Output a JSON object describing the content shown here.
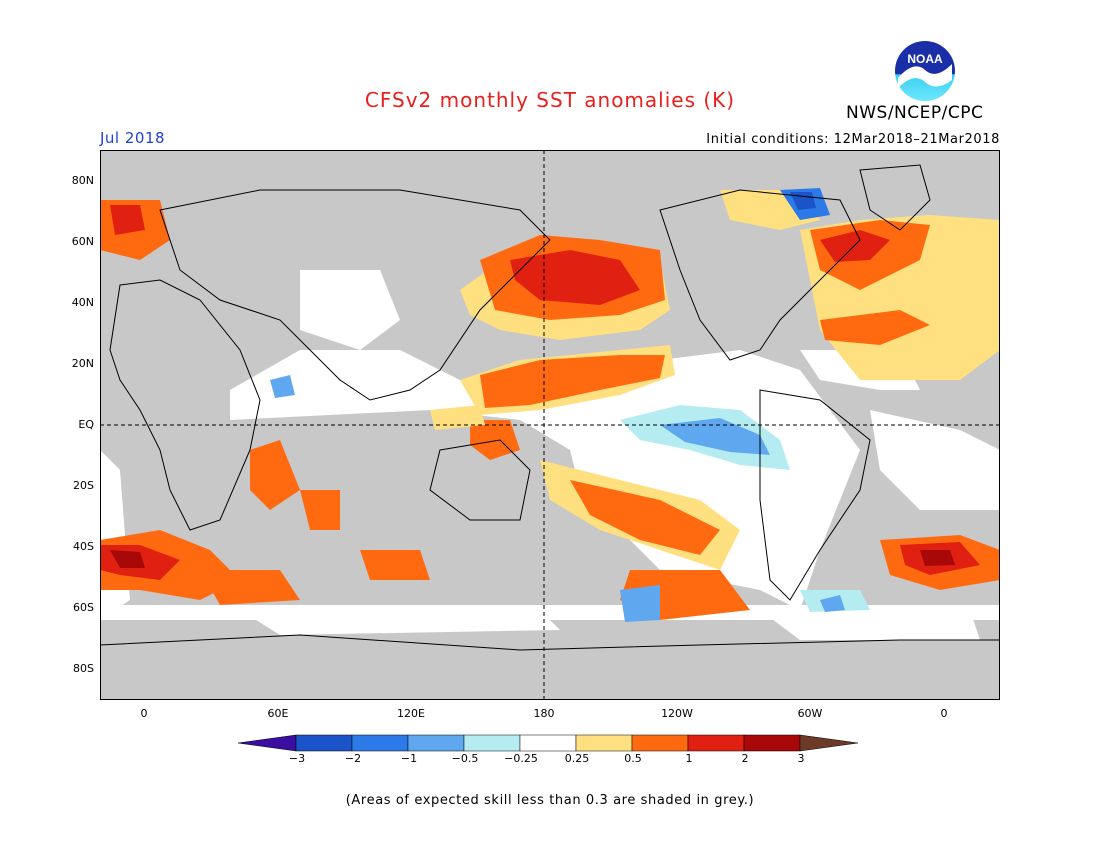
{
  "title": "CFSv2 monthly SST anomalies (K)",
  "org": "NWS/NCEP/CPC",
  "logo_text": "NOAA",
  "valid_month": "Jul 2018",
  "initial_conditions": "Initial conditions: 12Mar2018–21Mar2018",
  "lat_labels": [
    "80N",
    "60N",
    "40N",
    "20N",
    "EQ",
    "20S",
    "40S",
    "60S",
    "80S"
  ],
  "lon_labels": [
    "0",
    "60E",
    "120E",
    "180",
    "120W",
    "60W",
    "0"
  ],
  "colorbar": {
    "labels": [
      "−3",
      "−2",
      "−1",
      "−0.5",
      "−0.25",
      "0.25",
      "0.5",
      "1",
      "2",
      "3"
    ],
    "colors": [
      "#3a0ea0",
      "#1b54c8",
      "#2b7ae8",
      "#5fa8f0",
      "#b4ecf2",
      "#ffffff",
      "#ffe080",
      "#ff6a10",
      "#e02010",
      "#a80808",
      "#6e3a28"
    ]
  },
  "land_color": "#c8c8c8",
  "note": "(Areas of expected skill less than 0.3 are shaded in grey.)"
}
